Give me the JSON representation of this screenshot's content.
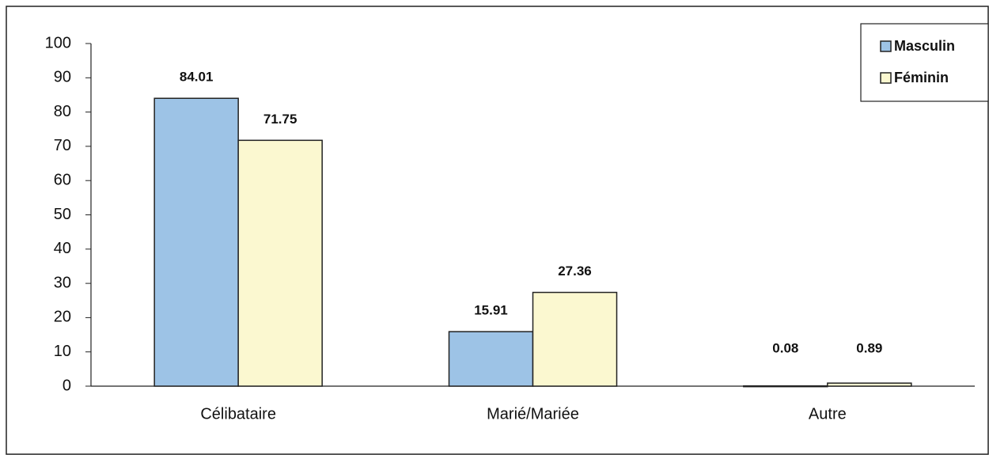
{
  "chart_data": {
    "type": "bar",
    "categories": [
      "Célibataire",
      "Marié/Mariée",
      "Autre"
    ],
    "series": [
      {
        "name": "Masculin",
        "color": "#9dc3e6",
        "values": [
          84.01,
          15.91,
          0.08
        ]
      },
      {
        "name": "Féminin",
        "color": "#fbf8d0",
        "values": [
          71.75,
          27.36,
          0.89
        ]
      }
    ],
    "ylim": [
      0,
      100
    ],
    "yticks": [
      0,
      10,
      20,
      30,
      40,
      50,
      60,
      70,
      80,
      90,
      100
    ],
    "grid": false,
    "legend": "top-right"
  }
}
